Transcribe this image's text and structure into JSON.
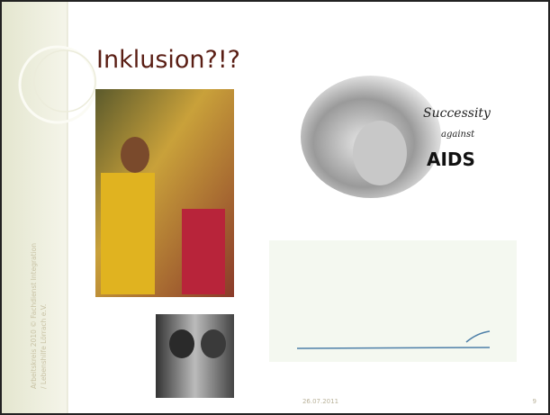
{
  "slide": {
    "title": "Inklusion?!?",
    "side_text": [
      "Arbeitskreis 2010 © Fachdienst Integration",
      "/ Lebenshilfe Lörrach e.V."
    ],
    "date": "26.07.2011",
    "page_number": "9",
    "image_text": [
      "Successity",
      "against",
      "AIDS"
    ]
  }
}
